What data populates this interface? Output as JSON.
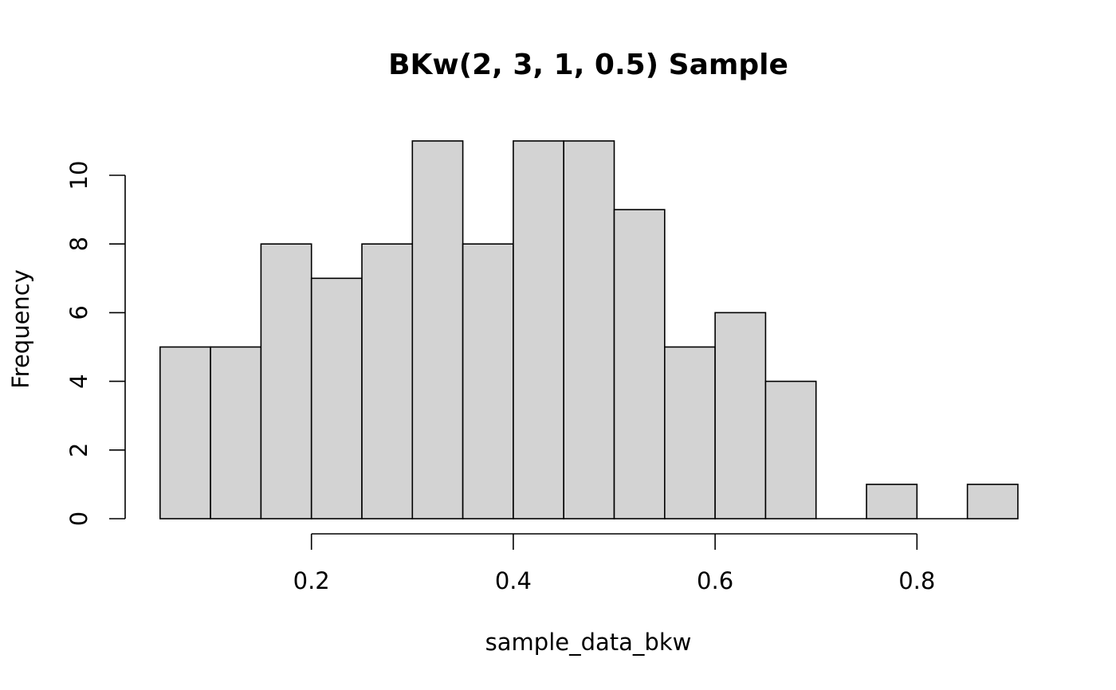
{
  "chart_data": {
    "type": "bar",
    "title": "BKw(2, 3, 1, 0.5) Sample",
    "xlabel": "sample_data_bkw",
    "ylabel": "Frequency",
    "bin_edges": [
      0.05,
      0.1,
      0.15,
      0.2,
      0.25,
      0.3,
      0.35,
      0.4,
      0.45,
      0.5,
      0.55,
      0.6,
      0.65,
      0.7,
      0.75,
      0.8,
      0.85,
      0.9
    ],
    "values": [
      5,
      5,
      8,
      7,
      8,
      11,
      8,
      11,
      11,
      9,
      5,
      6,
      4,
      0,
      1,
      0,
      1
    ],
    "xlim": [
      0.05,
      0.9
    ],
    "ylim": [
      0,
      11
    ],
    "x_ticks": [
      "0.2",
      "0.4",
      "0.6",
      "0.8"
    ],
    "y_ticks": [
      "0",
      "2",
      "4",
      "6",
      "8",
      "10"
    ],
    "bar_color": "#d3d3d3",
    "grid": false,
    "legend": "none"
  }
}
